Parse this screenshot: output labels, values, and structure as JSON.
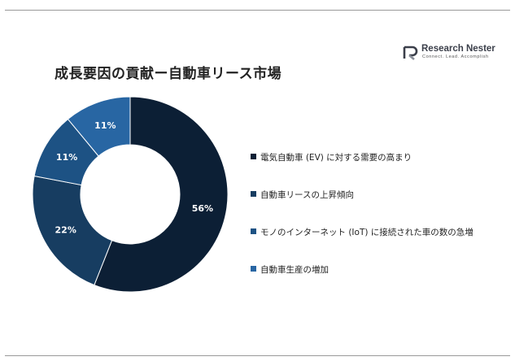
{
  "header": {
    "title": "成長要因の貢献ー自動車リース市場"
  },
  "logo": {
    "name_part1": "Research ",
    "name_part2": "Nester",
    "tagline": "Connect. Lead. Accomplish"
  },
  "chart_data": {
    "type": "pie",
    "donut": true,
    "title": "成長要因の貢献ー自動車リース市場",
    "legend_position": "right",
    "slices": [
      {
        "label": "電気自動車 (EV) に対する需要の高まり",
        "value": 56,
        "display": "56%",
        "color": "#0c1f35"
      },
      {
        "label": "自動車リースの上昇傾向",
        "value": 22,
        "display": "22%",
        "color": "#173d61"
      },
      {
        "label": "モノのインターネット (IoT) に接続された車の数の急増",
        "value": 11,
        "display": "11%",
        "color": "#1d5284"
      },
      {
        "label": "自動車生産の増加",
        "value": 11,
        "display": "11%",
        "color": "#2866a3"
      }
    ]
  }
}
